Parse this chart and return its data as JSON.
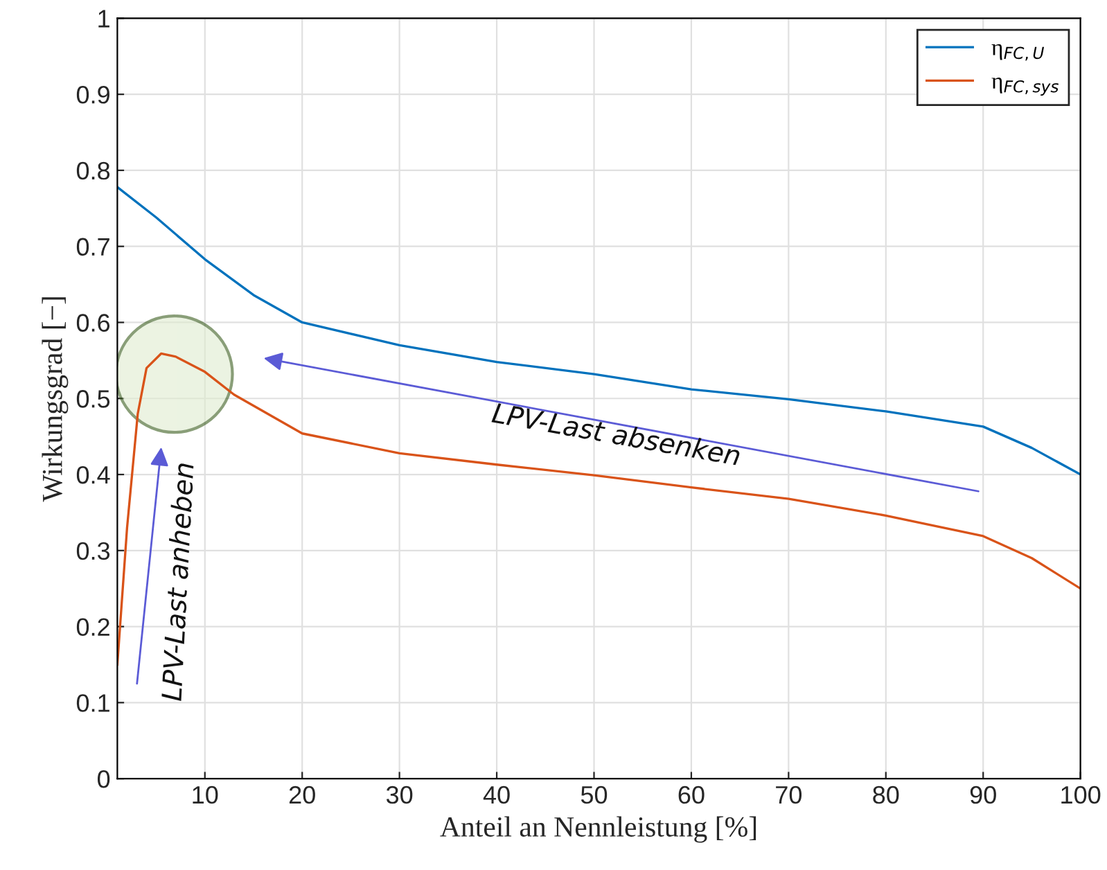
{
  "chart_data": {
    "type": "line",
    "xlabel": "Anteil an Nennleistung [%]",
    "ylabel": "Wirkungsgrad [−]",
    "xlim": [
      1,
      100
    ],
    "xticks": [
      10,
      20,
      30,
      40,
      50,
      60,
      70,
      80,
      90,
      100
    ],
    "ylim": [
      0,
      1
    ],
    "yticks": [
      0,
      0.1,
      0.2,
      0.3,
      0.4,
      0.5,
      0.6,
      0.7,
      0.8,
      0.9,
      1
    ],
    "grid": true,
    "legend": "top right",
    "line_style": "solid",
    "marker": "none",
    "series": [
      {
        "name": "η$_{FC,U}$",
        "color": "#0072bd",
        "x": [
          1,
          5,
          10,
          15,
          20,
          30,
          40,
          50,
          60,
          70,
          80,
          90,
          95,
          100
        ],
        "values": [
          0.778,
          0.738,
          0.683,
          0.636,
          0.6,
          0.57,
          0.548,
          0.532,
          0.512,
          0.499,
          0.483,
          0.463,
          0.435,
          0.4
        ]
      },
      {
        "name": "η$_{FC,sys}$",
        "color": "#d95319",
        "x": [
          1,
          2,
          3.1,
          4,
          5.5,
          7,
          10,
          13,
          20,
          30,
          40,
          50,
          60,
          70,
          80,
          90,
          95,
          100
        ],
        "values": [
          0.15,
          0.33,
          0.48,
          0.54,
          0.559,
          0.555,
          0.535,
          0.505,
          0.454,
          0.428,
          0.413,
          0.399,
          0.383,
          0.368,
          0.346,
          0.319,
          0.29,
          0.25
        ]
      }
    ],
    "annotations": [
      "LPV-Last absenken",
      "LPV-Last anheben"
    ]
  }
}
